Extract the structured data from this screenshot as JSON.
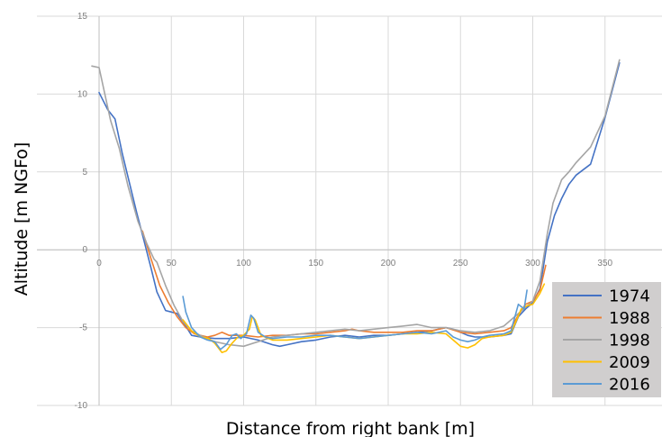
{
  "chart_data": {
    "type": "line",
    "title": "",
    "xlabel": "Distance from right bank [m]",
    "ylabel": "Altitude [m NGFo]",
    "xlim": [
      0,
      390
    ],
    "ylim": [
      -10,
      15
    ],
    "x_ticks": [
      0,
      50,
      100,
      150,
      200,
      250,
      300,
      350
    ],
    "y_ticks": [
      -10,
      -5,
      0,
      5,
      10,
      15
    ],
    "grid": true,
    "legend_position": "bottom-right",
    "series": [
      {
        "name": "1974",
        "color": "#4472c4",
        "points": [
          [
            0,
            10.1
          ],
          [
            6,
            9.0
          ],
          [
            11,
            8.4
          ],
          [
            16,
            6.2
          ],
          [
            21,
            4.3
          ],
          [
            26,
            2.4
          ],
          [
            31,
            0.6
          ],
          [
            36,
            -1.2
          ],
          [
            40,
            -2.7
          ],
          [
            46,
            -3.9
          ],
          [
            50,
            -4.0
          ],
          [
            54,
            -4.1
          ],
          [
            60,
            -4.9
          ],
          [
            64,
            -5.5
          ],
          [
            70,
            -5.6
          ],
          [
            80,
            -5.7
          ],
          [
            90,
            -5.7
          ],
          [
            100,
            -5.6
          ],
          [
            110,
            -5.8
          ],
          [
            120,
            -6.1
          ],
          [
            125,
            -6.2
          ],
          [
            130,
            -6.1
          ],
          [
            140,
            -5.9
          ],
          [
            150,
            -5.8
          ],
          [
            160,
            -5.6
          ],
          [
            170,
            -5.5
          ],
          [
            180,
            -5.6
          ],
          [
            190,
            -5.5
          ],
          [
            200,
            -5.5
          ],
          [
            210,
            -5.4
          ],
          [
            220,
            -5.3
          ],
          [
            230,
            -5.2
          ],
          [
            235,
            -5.1
          ],
          [
            240,
            -5.0
          ],
          [
            245,
            -5.1
          ],
          [
            250,
            -5.3
          ],
          [
            255,
            -5.5
          ],
          [
            260,
            -5.6
          ],
          [
            270,
            -5.6
          ],
          [
            280,
            -5.5
          ],
          [
            285,
            -5.4
          ],
          [
            290,
            -4.3
          ],
          [
            295,
            -3.8
          ],
          [
            300,
            -3.4
          ],
          [
            305,
            -2.5
          ],
          [
            310,
            0.5
          ],
          [
            315,
            2.2
          ],
          [
            320,
            3.3
          ],
          [
            325,
            4.2
          ],
          [
            330,
            4.8
          ],
          [
            340,
            5.5
          ],
          [
            350,
            8.5
          ],
          [
            360,
            12.0
          ]
        ]
      },
      {
        "name": "1988",
        "color": "#ed7d31",
        "points": [
          [
            30,
            1.2
          ],
          [
            36,
            -0.6
          ],
          [
            42,
            -2.3
          ],
          [
            48,
            -3.4
          ],
          [
            54,
            -4.3
          ],
          [
            60,
            -5.0
          ],
          [
            66,
            -5.4
          ],
          [
            70,
            -5.5
          ],
          [
            75,
            -5.6
          ],
          [
            80,
            -5.5
          ],
          [
            85,
            -5.3
          ],
          [
            90,
            -5.5
          ],
          [
            100,
            -5.5
          ],
          [
            110,
            -5.6
          ],
          [
            120,
            -5.5
          ],
          [
            130,
            -5.5
          ],
          [
            140,
            -5.4
          ],
          [
            150,
            -5.4
          ],
          [
            160,
            -5.3
          ],
          [
            170,
            -5.2
          ],
          [
            175,
            -5.1
          ],
          [
            180,
            -5.2
          ],
          [
            190,
            -5.3
          ],
          [
            200,
            -5.3
          ],
          [
            210,
            -5.3
          ],
          [
            220,
            -5.2
          ],
          [
            230,
            -5.2
          ],
          [
            240,
            -5.0
          ],
          [
            250,
            -5.3
          ],
          [
            260,
            -5.4
          ],
          [
            270,
            -5.3
          ],
          [
            280,
            -5.2
          ],
          [
            285,
            -5.0
          ],
          [
            290,
            -4.2
          ],
          [
            295,
            -3.5
          ],
          [
            300,
            -3.3
          ],
          [
            305,
            -2.6
          ],
          [
            309,
            -1.0
          ]
        ]
      },
      {
        "name": "1998",
        "color": "#a5a5a5",
        "points": [
          [
            -5,
            11.8
          ],
          [
            0,
            11.7
          ],
          [
            8,
            8.3
          ],
          [
            14,
            6.5
          ],
          [
            20,
            4.1
          ],
          [
            27,
            1.8
          ],
          [
            33,
            0.4
          ],
          [
            38,
            -0.6
          ],
          [
            40,
            -0.8
          ],
          [
            46,
            -2.3
          ],
          [
            52,
            -3.6
          ],
          [
            58,
            -4.6
          ],
          [
            64,
            -5.2
          ],
          [
            70,
            -5.5
          ],
          [
            80,
            -5.9
          ],
          [
            90,
            -6.1
          ],
          [
            100,
            -6.2
          ],
          [
            110,
            -5.9
          ],
          [
            120,
            -5.6
          ],
          [
            130,
            -5.5
          ],
          [
            140,
            -5.4
          ],
          [
            150,
            -5.3
          ],
          [
            160,
            -5.2
          ],
          [
            170,
            -5.1
          ],
          [
            180,
            -5.2
          ],
          [
            190,
            -5.1
          ],
          [
            200,
            -5.0
          ],
          [
            210,
            -4.9
          ],
          [
            220,
            -4.8
          ],
          [
            230,
            -5.0
          ],
          [
            240,
            -5.0
          ],
          [
            250,
            -5.2
          ],
          [
            260,
            -5.3
          ],
          [
            270,
            -5.2
          ],
          [
            280,
            -4.9
          ],
          [
            290,
            -4.1
          ],
          [
            300,
            -3.3
          ],
          [
            305,
            -2.0
          ],
          [
            310,
            1.0
          ],
          [
            314,
            3.0
          ],
          [
            320,
            4.5
          ],
          [
            325,
            5.0
          ],
          [
            330,
            5.6
          ],
          [
            340,
            6.6
          ],
          [
            350,
            8.6
          ],
          [
            360,
            12.2
          ]
        ]
      },
      {
        "name": "2009",
        "color": "#ffc000",
        "points": [
          [
            58,
            -4.5
          ],
          [
            64,
            -5.2
          ],
          [
            70,
            -5.6
          ],
          [
            76,
            -5.7
          ],
          [
            80,
            -6.0
          ],
          [
            85,
            -6.6
          ],
          [
            88,
            -6.5
          ],
          [
            92,
            -6.0
          ],
          [
            96,
            -5.6
          ],
          [
            100,
            -5.5
          ],
          [
            104,
            -5.1
          ],
          [
            106,
            -4.3
          ],
          [
            108,
            -4.5
          ],
          [
            112,
            -5.5
          ],
          [
            120,
            -5.8
          ],
          [
            130,
            -5.8
          ],
          [
            140,
            -5.7
          ],
          [
            150,
            -5.6
          ],
          [
            160,
            -5.5
          ],
          [
            170,
            -5.6
          ],
          [
            180,
            -5.7
          ],
          [
            190,
            -5.6
          ],
          [
            200,
            -5.5
          ],
          [
            210,
            -5.4
          ],
          [
            220,
            -5.4
          ],
          [
            230,
            -5.3
          ],
          [
            240,
            -5.4
          ],
          [
            245,
            -5.8
          ],
          [
            250,
            -6.2
          ],
          [
            255,
            -6.3
          ],
          [
            260,
            -6.1
          ],
          [
            265,
            -5.7
          ],
          [
            270,
            -5.6
          ],
          [
            280,
            -5.5
          ],
          [
            285,
            -5.3
          ],
          [
            288,
            -4.7
          ],
          [
            292,
            -3.8
          ],
          [
            296,
            -3.6
          ],
          [
            300,
            -3.5
          ],
          [
            305,
            -2.8
          ],
          [
            308,
            -2.2
          ]
        ]
      },
      {
        "name": "2016",
        "color": "#5b9bd5",
        "points": [
          [
            58,
            -3.0
          ],
          [
            60,
            -4.0
          ],
          [
            64,
            -5.0
          ],
          [
            67,
            -5.3
          ],
          [
            70,
            -5.6
          ],
          [
            75,
            -5.8
          ],
          [
            80,
            -5.9
          ],
          [
            84,
            -6.4
          ],
          [
            88,
            -6.1
          ],
          [
            92,
            -5.5
          ],
          [
            95,
            -5.4
          ],
          [
            98,
            -5.7
          ],
          [
            102,
            -5.4
          ],
          [
            105,
            -4.2
          ],
          [
            107,
            -4.4
          ],
          [
            110,
            -5.3
          ],
          [
            115,
            -5.6
          ],
          [
            120,
            -5.7
          ],
          [
            130,
            -5.6
          ],
          [
            140,
            -5.6
          ],
          [
            150,
            -5.5
          ],
          [
            160,
            -5.5
          ],
          [
            170,
            -5.6
          ],
          [
            180,
            -5.7
          ],
          [
            190,
            -5.6
          ],
          [
            200,
            -5.5
          ],
          [
            210,
            -5.4
          ],
          [
            220,
            -5.3
          ],
          [
            230,
            -5.4
          ],
          [
            240,
            -5.2
          ],
          [
            245,
            -5.6
          ],
          [
            250,
            -5.8
          ],
          [
            255,
            -5.9
          ],
          [
            260,
            -5.8
          ],
          [
            265,
            -5.6
          ],
          [
            270,
            -5.5
          ],
          [
            280,
            -5.4
          ],
          [
            285,
            -5.2
          ],
          [
            290,
            -3.5
          ],
          [
            294,
            -3.8
          ],
          [
            296,
            -2.6
          ]
        ]
      }
    ]
  }
}
